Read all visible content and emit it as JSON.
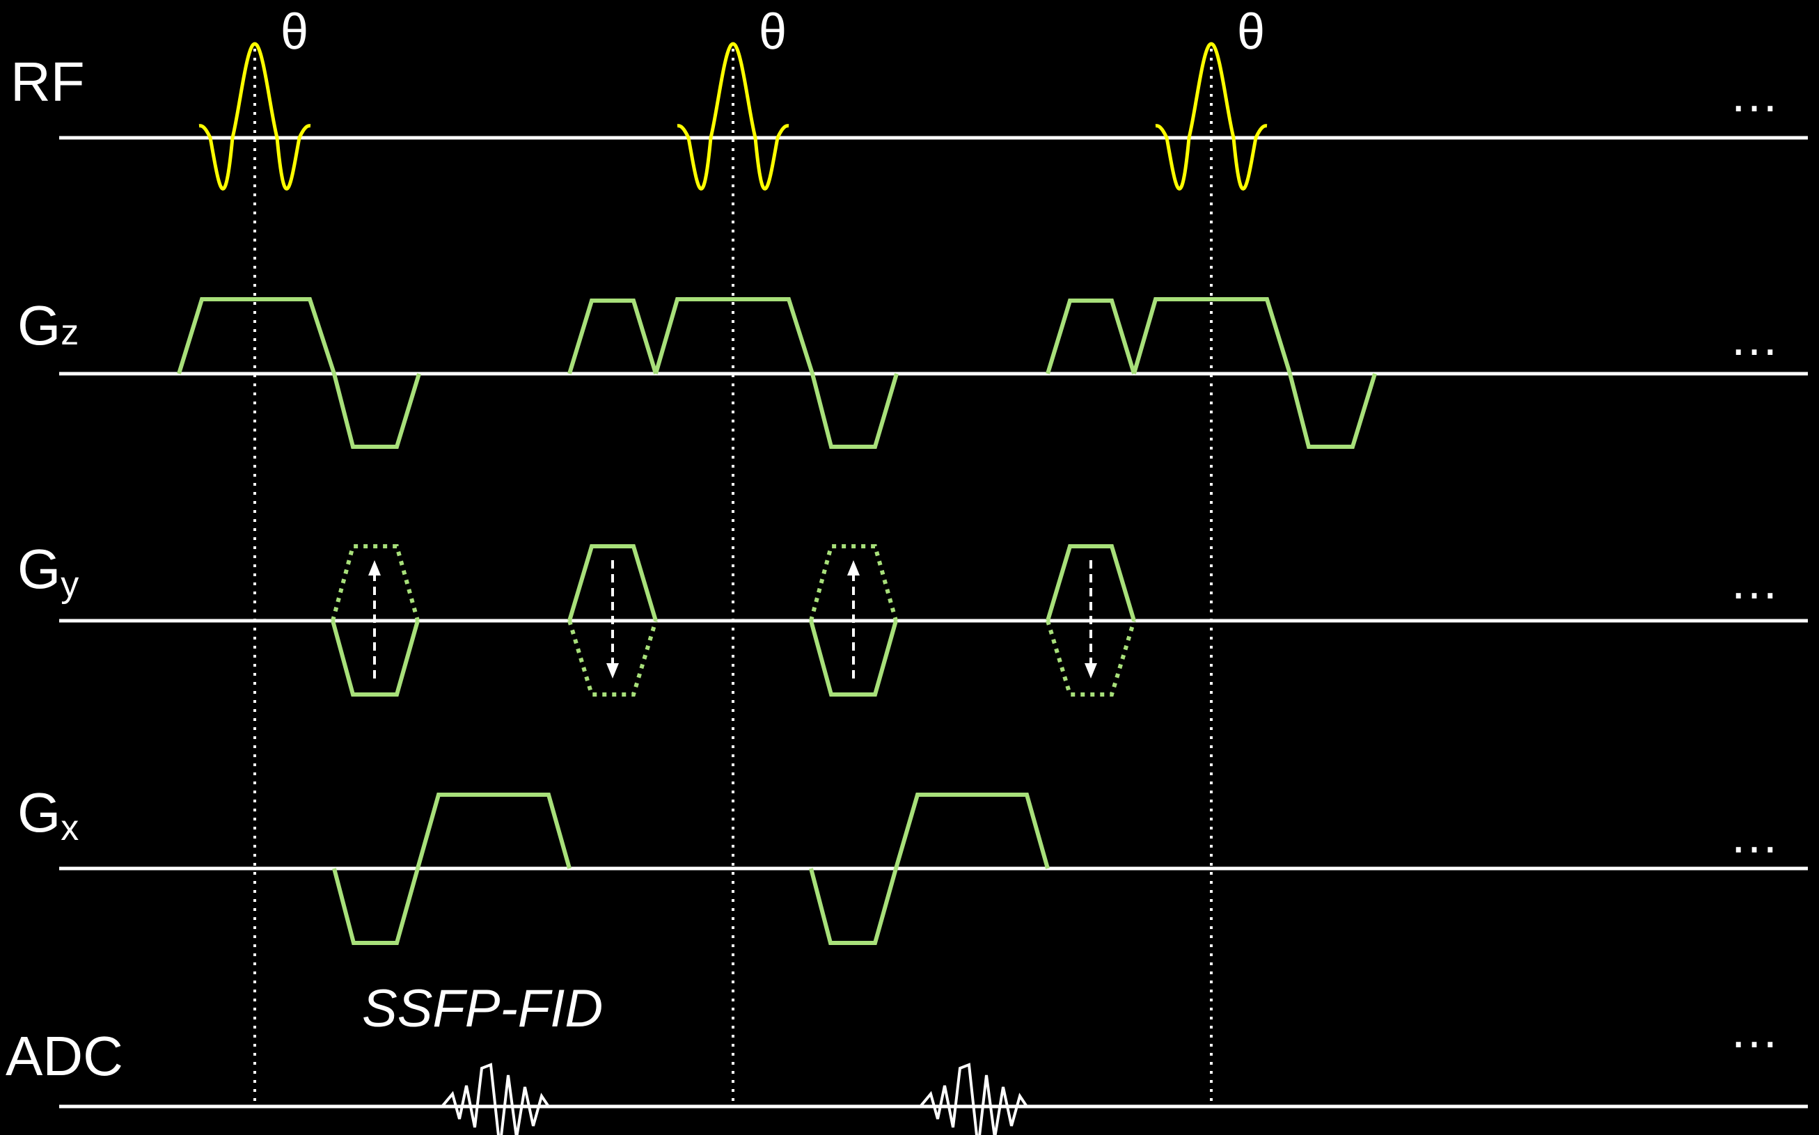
{
  "rows": {
    "rf": {
      "label": "RF"
    },
    "gz": {
      "label_main": "G",
      "label_sub": "z"
    },
    "gy": {
      "label_main": "G",
      "label_sub": "y"
    },
    "gx": {
      "label_main": "G",
      "label_sub": "x"
    },
    "adc": {
      "label": "ADC"
    }
  },
  "flip_angle_symbol": "θ",
  "continuation": "…",
  "signal_label": "SSFP-FID",
  "colors": {
    "background": "#000000",
    "axis": "#ffffff",
    "rf_pulse": "#ffff00",
    "gradient": "#a8e07a",
    "text": "#ffffff"
  }
}
